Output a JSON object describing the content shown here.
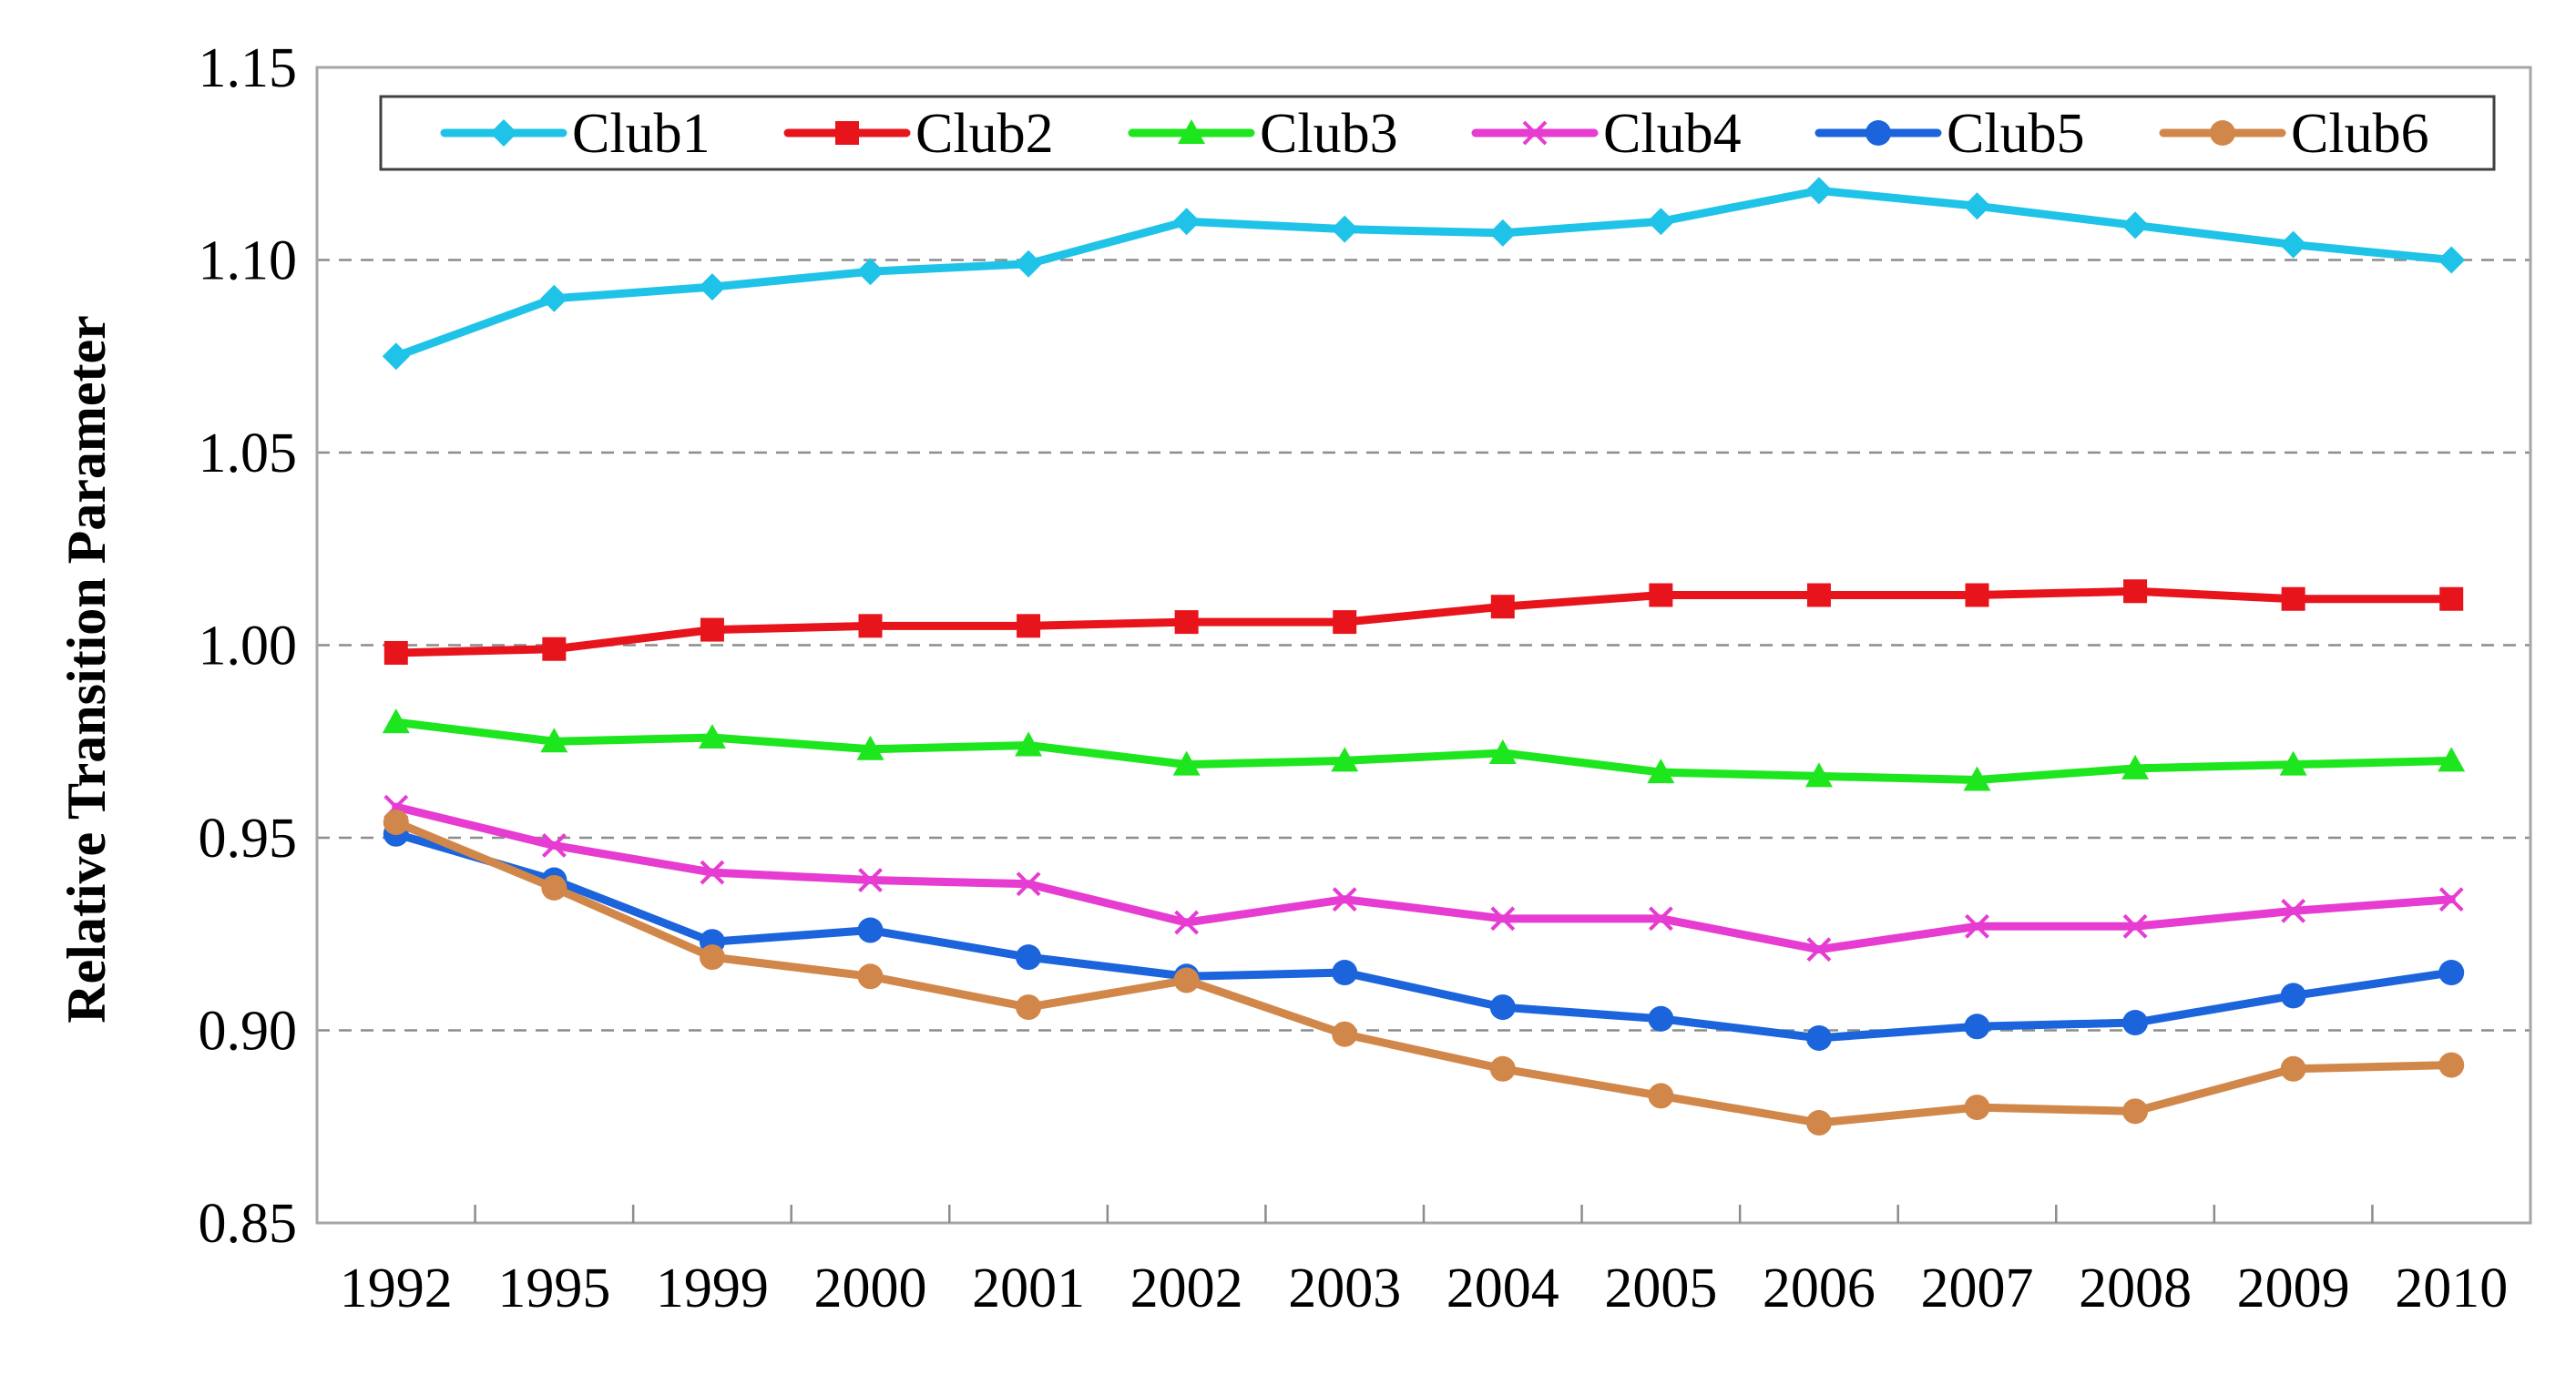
{
  "chart_data": {
    "type": "line",
    "title": "",
    "xlabel": "",
    "ylabel": "Relative Transition Parameter",
    "categories": [
      "1992",
      "1995",
      "1999",
      "2000",
      "2001",
      "2002",
      "2003",
      "2004",
      "2005",
      "2006",
      "2007",
      "2008",
      "2009",
      "2010"
    ],
    "ylim": [
      0.85,
      1.15
    ],
    "yticks": [
      "0.85",
      "0.90",
      "0.95",
      "1.00",
      "1.05",
      "1.10",
      "1.15"
    ],
    "grid": "horizontal dashed",
    "legend_position": "top",
    "series": [
      {
        "name": "Club1",
        "color": "#1fc3e8",
        "marker": "diamond",
        "values": [
          1.075,
          1.09,
          1.093,
          1.097,
          1.099,
          1.11,
          1.108,
          1.107,
          1.11,
          1.118,
          1.114,
          1.109,
          1.104,
          1.1
        ]
      },
      {
        "name": "Club2",
        "color": "#e8141c",
        "marker": "square",
        "values": [
          0.998,
          0.999,
          1.004,
          1.005,
          1.005,
          1.006,
          1.006,
          1.01,
          1.013,
          1.013,
          1.013,
          1.014,
          1.012,
          1.012
        ]
      },
      {
        "name": "Club3",
        "color": "#1ee61e",
        "marker": "triangle",
        "values": [
          0.98,
          0.975,
          0.976,
          0.973,
          0.974,
          0.969,
          0.97,
          0.972,
          0.967,
          0.966,
          0.965,
          0.968,
          0.969,
          0.97
        ]
      },
      {
        "name": "Club4",
        "color": "#e63cd2",
        "marker": "x",
        "values": [
          0.958,
          0.948,
          0.941,
          0.939,
          0.938,
          0.928,
          0.934,
          0.929,
          0.929,
          0.921,
          0.927,
          0.927,
          0.931,
          0.934
        ]
      },
      {
        "name": "Club5",
        "color": "#1b64dc",
        "marker": "circle",
        "values": [
          0.951,
          0.939,
          0.923,
          0.926,
          0.919,
          0.914,
          0.915,
          0.906,
          0.903,
          0.898,
          0.901,
          0.902,
          0.909,
          0.915
        ]
      },
      {
        "name": "Club6",
        "color": "#d2874a",
        "marker": "circle",
        "values": [
          0.954,
          0.937,
          0.919,
          0.914,
          0.906,
          0.913,
          0.899,
          0.89,
          0.883,
          0.876,
          0.88,
          0.879,
          0.89,
          0.891
        ]
      }
    ]
  }
}
